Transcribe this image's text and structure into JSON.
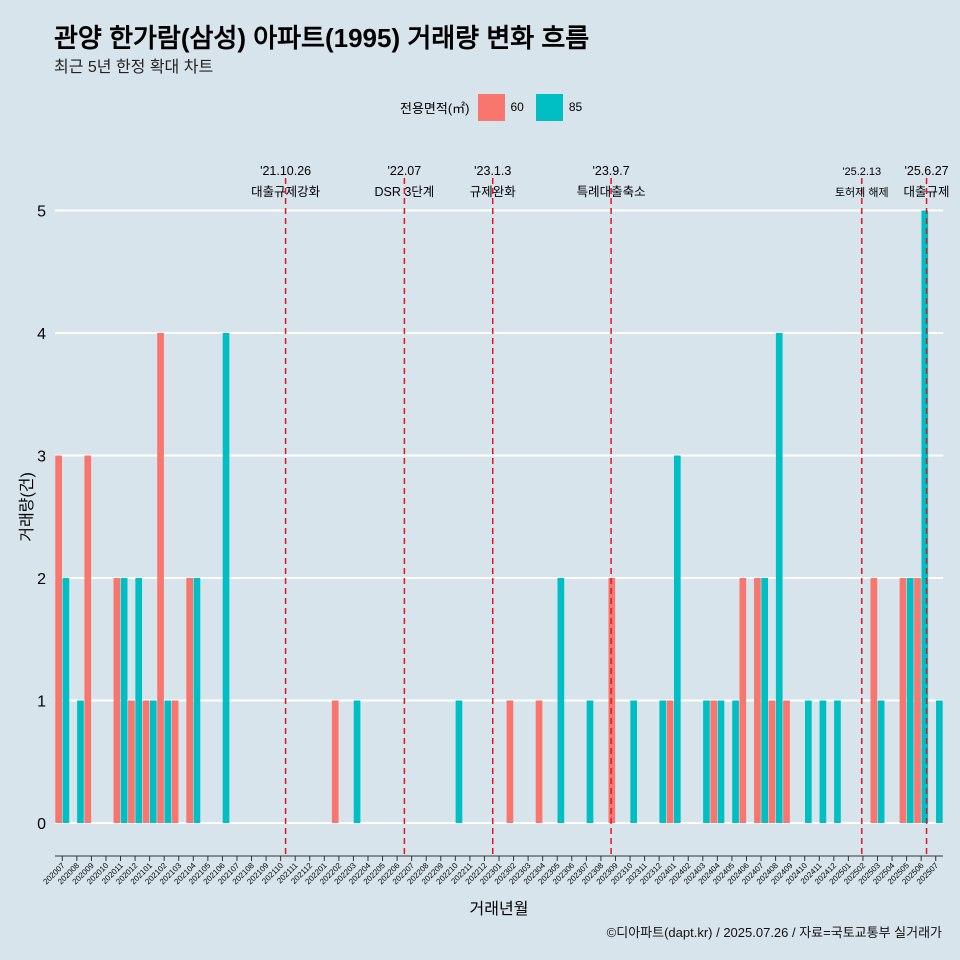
{
  "header": {
    "title": "관양 한가람(삼성) 아파트(1995) 거래량 변화 흐름",
    "subtitle": "최근 5년 한정 확대 차트"
  },
  "footer": {
    "credit": "©디아파트(dapt.kr) / 2025.07.26 / 자료=국토교통부 실거래가"
  },
  "legend": {
    "title": "전용면적(㎡)",
    "items": [
      {
        "label": "60",
        "color": "#F8766D"
      },
      {
        "label": "85",
        "color": "#00BFC4"
      }
    ]
  },
  "chart_data": {
    "type": "bar",
    "title": "관양 한가람(삼성) 아파트(1995) 거래량 변화 흐름",
    "xlabel": "거래년월",
    "ylabel": "거래량(건)",
    "ylim": [
      0,
      5
    ],
    "yticks": [
      0,
      1,
      2,
      3,
      4,
      5
    ],
    "categories": [
      "202007",
      "202008",
      "202009",
      "202010",
      "202011",
      "202012",
      "202101",
      "202102",
      "202103",
      "202104",
      "202105",
      "202106",
      "202107",
      "202108",
      "202109",
      "202110",
      "202111",
      "202112",
      "202201",
      "202202",
      "202203",
      "202204",
      "202205",
      "202206",
      "202207",
      "202208",
      "202209",
      "202210",
      "202211",
      "202212",
      "202301",
      "202302",
      "202303",
      "202304",
      "202305",
      "202306",
      "202307",
      "202308",
      "202309",
      "202310",
      "202311",
      "202312",
      "202401",
      "202402",
      "202403",
      "202404",
      "202405",
      "202406",
      "202407",
      "202408",
      "202409",
      "202410",
      "202411",
      "202412",
      "202501",
      "202502",
      "202503",
      "202504",
      "202505",
      "202506",
      "202507"
    ],
    "series": [
      {
        "name": "60",
        "color": "#F8766D",
        "values": [
          3,
          0,
          3,
          0,
          2,
          1,
          1,
          4,
          1,
          2,
          0,
          0,
          0,
          0,
          0,
          0,
          0,
          0,
          0,
          1,
          0,
          0,
          0,
          0,
          0,
          0,
          0,
          0,
          0,
          0,
          0,
          1,
          0,
          1,
          0,
          0,
          0,
          0,
          2,
          0,
          0,
          0,
          1,
          0,
          0,
          1,
          0,
          2,
          2,
          1,
          1,
          0,
          0,
          0,
          0,
          0,
          2,
          0,
          2,
          2,
          0
        ]
      },
      {
        "name": "85",
        "color": "#00BFC4",
        "values": [
          2,
          1,
          0,
          0,
          2,
          2,
          1,
          1,
          0,
          2,
          0,
          4,
          0,
          0,
          0,
          0,
          0,
          0,
          0,
          0,
          1,
          0,
          0,
          0,
          0,
          0,
          0,
          1,
          0,
          0,
          0,
          0,
          0,
          0,
          2,
          0,
          1,
          0,
          0,
          1,
          0,
          1,
          3,
          0,
          1,
          1,
          1,
          0,
          2,
          4,
          0,
          1,
          1,
          1,
          0,
          0,
          1,
          0,
          2,
          5,
          1
        ]
      }
    ],
    "events": [
      {
        "date": "'21.10.26",
        "label": "대출규제강화",
        "at": "202110",
        "frac": 0.84,
        "style": "normal"
      },
      {
        "date": "'22.07",
        "label": "DSR 3단계",
        "at": "202207",
        "frac": 0.0,
        "style": "normal"
      },
      {
        "date": "'23.1.3",
        "label": "규제완화",
        "at": "202301",
        "frac": 0.07,
        "style": "normal"
      },
      {
        "date": "'23.9.7",
        "label": "특례대출축소",
        "at": "202309",
        "frac": 0.2,
        "style": "normal"
      },
      {
        "date": "'25.2.13",
        "label": "토허제 해제",
        "at": "202502",
        "frac": 0.42,
        "style": "small"
      },
      {
        "date": "'25.6.27",
        "label": "대출규제",
        "at": "202506",
        "frac": 0.87,
        "style": "normal"
      }
    ]
  }
}
